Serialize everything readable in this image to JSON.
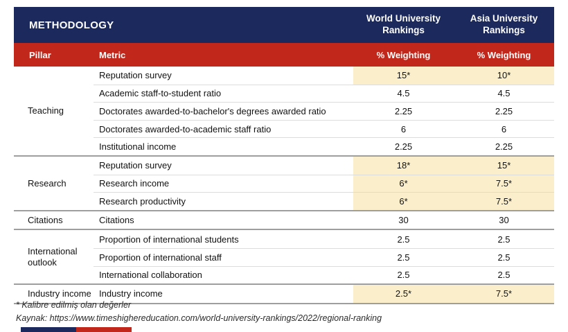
{
  "header": {
    "title": "METHODOLOGY",
    "world_column": "World University Rankings",
    "asia_column": "Asia University Rankings"
  },
  "subheader": {
    "pillar": "Pillar",
    "metric": "Metric",
    "world_weighting": "% Weighting",
    "asia_weighting": "% Weighting"
  },
  "groups": [
    {
      "pillar": "Teaching",
      "rows": [
        {
          "metric": "Reputation survey",
          "world": "15*",
          "asia": "10*",
          "highlight": true
        },
        {
          "metric": "Academic staff-to-student ratio",
          "world": "4.5",
          "asia": "4.5",
          "highlight": false
        },
        {
          "metric": "Doctorates awarded-to-bachelor's degrees awarded ratio",
          "world": "2.25",
          "asia": "2.25",
          "highlight": false
        },
        {
          "metric": "Doctorates awarded-to-academic staff ratio",
          "world": "6",
          "asia": "6",
          "highlight": false
        },
        {
          "metric": "Institutional income",
          "world": "2.25",
          "asia": "2.25",
          "highlight": false
        }
      ]
    },
    {
      "pillar": "Research",
      "rows": [
        {
          "metric": "Reputation survey",
          "world": "18*",
          "asia": "15*",
          "highlight": true
        },
        {
          "metric": "Research income",
          "world": "6*",
          "asia": "7.5*",
          "highlight": true
        },
        {
          "metric": "Research productivity",
          "world": "6*",
          "asia": "7.5*",
          "highlight": true
        }
      ]
    },
    {
      "pillar": "Citations",
      "rows": [
        {
          "metric": "Citations",
          "world": "30",
          "asia": "30",
          "highlight": false
        }
      ]
    },
    {
      "pillar": "International outlook",
      "rows": [
        {
          "metric": "Proportion of international students",
          "world": "2.5",
          "asia": "2.5",
          "highlight": false
        },
        {
          "metric": "Proportion of international staff",
          "world": "2.5",
          "asia": "2.5",
          "highlight": false
        },
        {
          "metric": "International collaboration",
          "world": "2.5",
          "asia": "2.5",
          "highlight": false
        }
      ]
    },
    {
      "pillar": "Industry income",
      "rows": [
        {
          "metric": "Industry income",
          "world": "2.5*",
          "asia": "7.5*",
          "highlight": true
        }
      ]
    }
  ],
  "footnotes": {
    "calibration_note": "* Kalibre edilmiş olan değerler",
    "source": "Kaynak: https://www.timeshighereducation.com/world-university-rankings/2022/regional-ranking"
  },
  "colors": {
    "navy": "#1b295c",
    "red": "#c1281b",
    "highlight": "#faeecb"
  }
}
